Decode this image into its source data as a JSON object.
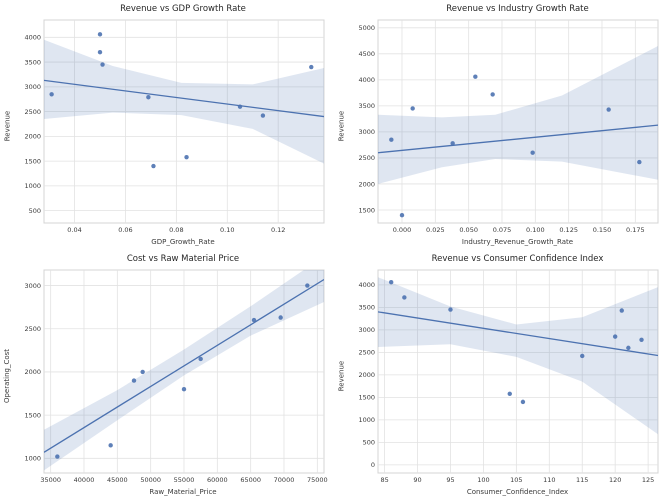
{
  "style": {
    "point_color": "#4c72b0",
    "line_color": "#4c72b0",
    "band_color": "#4c72b0",
    "band_opacity": 0.18,
    "grid_color": "#e2e2e2",
    "border_color": "#d4d4d4",
    "tick_color": "#3a3a3a",
    "title_color": "#262626"
  },
  "chart_data": [
    {
      "type": "scatter",
      "title": "Revenue vs GDP Growth Rate",
      "xlabel": "GDP_Growth_Rate",
      "ylabel": "Revenue",
      "xlim": [
        0.028,
        0.138
      ],
      "ylim": [
        250,
        4350
      ],
      "xticks": [
        0.04,
        0.06,
        0.08,
        0.1,
        0.12
      ],
      "xtick_labels": [
        "0.04",
        "0.06",
        "0.08",
        "0.10",
        "0.12"
      ],
      "yticks": [
        500,
        1000,
        1500,
        2000,
        2500,
        3000,
        3500,
        4000
      ],
      "ytick_labels": [
        "500",
        "1000",
        "1500",
        "2000",
        "2500",
        "3000",
        "3500",
        "4000"
      ],
      "grid": true,
      "legend": "none",
      "points": [
        [
          0.031,
          2850
        ],
        [
          0.05,
          4060
        ],
        [
          0.05,
          3700
        ],
        [
          0.051,
          3450
        ],
        [
          0.069,
          2790
        ],
        [
          0.071,
          1400
        ],
        [
          0.084,
          1580
        ],
        [
          0.105,
          2600
        ],
        [
          0.114,
          2420
        ],
        [
          0.133,
          3400
        ]
      ],
      "regression": {
        "x1": 0.028,
        "y1": 3130,
        "x2": 0.138,
        "y2": 2400
      },
      "band": [
        [
          0.028,
          2350,
          3950
        ],
        [
          0.055,
          2480,
          3420
        ],
        [
          0.082,
          2430,
          3080
        ],
        [
          0.11,
          2150,
          3050
        ],
        [
          0.138,
          1450,
          3380
        ]
      ]
    },
    {
      "type": "scatter",
      "title": "Revenue vs Industry Growth Rate",
      "xlabel": "Industry_Revenue_Growth_Rate",
      "ylabel": "Revenue",
      "xlim": [
        -0.018,
        0.192
      ],
      "ylim": [
        1250,
        5150
      ],
      "xticks": [
        0.0,
        0.025,
        0.05,
        0.075,
        0.1,
        0.125,
        0.15,
        0.175
      ],
      "xtick_labels": [
        "0.000",
        "0.025",
        "0.050",
        "0.075",
        "0.100",
        "0.125",
        "0.150",
        "0.175"
      ],
      "yticks": [
        1500,
        2000,
        2500,
        3000,
        3500,
        4000,
        4500,
        5000
      ],
      "ytick_labels": [
        "1500",
        "2000",
        "2500",
        "3000",
        "3500",
        "4000",
        "4500",
        "5000"
      ],
      "grid": true,
      "legend": "none",
      "points": [
        [
          -0.008,
          2850
        ],
        [
          0.0,
          1400
        ],
        [
          0.008,
          3450
        ],
        [
          0.038,
          2780
        ],
        [
          0.055,
          4060
        ],
        [
          0.068,
          3720
        ],
        [
          0.098,
          2600
        ],
        [
          0.155,
          3430
        ],
        [
          0.178,
          2420
        ]
      ],
      "regression": {
        "x1": -0.018,
        "y1": 2600,
        "x2": 0.192,
        "y2": 3130
      },
      "band": [
        [
          -0.018,
          2000,
          3330
        ],
        [
          0.03,
          2320,
          3280
        ],
        [
          0.07,
          2480,
          3330
        ],
        [
          0.12,
          2430,
          3700
        ],
        [
          0.192,
          2080,
          4650
        ]
      ]
    },
    {
      "type": "scatter",
      "title": "Cost vs Raw Material Price",
      "xlabel": "Raw_Material_Price",
      "ylabel": "Operating_Cost",
      "xlim": [
        34000,
        76000
      ],
      "ylim": [
        830,
        3180
      ],
      "xticks": [
        35000,
        40000,
        45000,
        50000,
        55000,
        60000,
        65000,
        70000,
        75000
      ],
      "xtick_labels": [
        "35000",
        "40000",
        "45000",
        "50000",
        "55000",
        "60000",
        "65000",
        "70000",
        "75000"
      ],
      "yticks": [
        1000,
        1500,
        2000,
        2500,
        3000
      ],
      "ytick_labels": [
        "1000",
        "1500",
        "2000",
        "2500",
        "3000"
      ],
      "grid": true,
      "legend": "none",
      "points": [
        [
          36000,
          1020
        ],
        [
          44000,
          1150
        ],
        [
          47500,
          1900
        ],
        [
          48800,
          2000
        ],
        [
          55000,
          1800
        ],
        [
          57500,
          2150
        ],
        [
          65500,
          2600
        ],
        [
          69500,
          2630
        ],
        [
          73500,
          3000
        ]
      ],
      "regression": {
        "x1": 34000,
        "y1": 1070,
        "x2": 76000,
        "y2": 3070
      },
      "band": [
        [
          34000,
          860,
          1330
        ],
        [
          45000,
          1440,
          1790
        ],
        [
          55000,
          1960,
          2260
        ],
        [
          65000,
          2420,
          2760
        ],
        [
          76000,
          2810,
          3340
        ]
      ]
    },
    {
      "type": "scatter",
      "title": "Revenue vs Consumer Confidence Index",
      "xlabel": "Consumer_Confidence_Index",
      "ylabel": "Revenue",
      "xlim": [
        84,
        126.5
      ],
      "ylim": [
        -180,
        4330
      ],
      "xticks": [
        85,
        90,
        95,
        100,
        105,
        110,
        115,
        120,
        125
      ],
      "xtick_labels": [
        "85",
        "90",
        "95",
        "100",
        "105",
        "110",
        "115",
        "120",
        "125"
      ],
      "yticks": [
        0,
        500,
        1000,
        1500,
        2000,
        2500,
        3000,
        3500,
        4000
      ],
      "ytick_labels": [
        "0",
        "500",
        "1000",
        "1500",
        "2000",
        "2500",
        "3000",
        "3500",
        "4000"
      ],
      "grid": true,
      "legend": "none",
      "points": [
        [
          86,
          4060
        ],
        [
          88,
          3720
        ],
        [
          95,
          3450
        ],
        [
          104,
          1580
        ],
        [
          106,
          1400
        ],
        [
          115,
          2420
        ],
        [
          120,
          2850
        ],
        [
          121,
          3430
        ],
        [
          122,
          2600
        ],
        [
          124,
          2780
        ]
      ],
      "regression": {
        "x1": 84,
        "y1": 3400,
        "x2": 126.5,
        "y2": 2430
      },
      "band": [
        [
          84,
          2620,
          4170
        ],
        [
          95,
          2680,
          3520
        ],
        [
          105,
          2400,
          3120
        ],
        [
          115,
          1850,
          3280
        ],
        [
          126.5,
          680,
          3950
        ]
      ]
    }
  ]
}
